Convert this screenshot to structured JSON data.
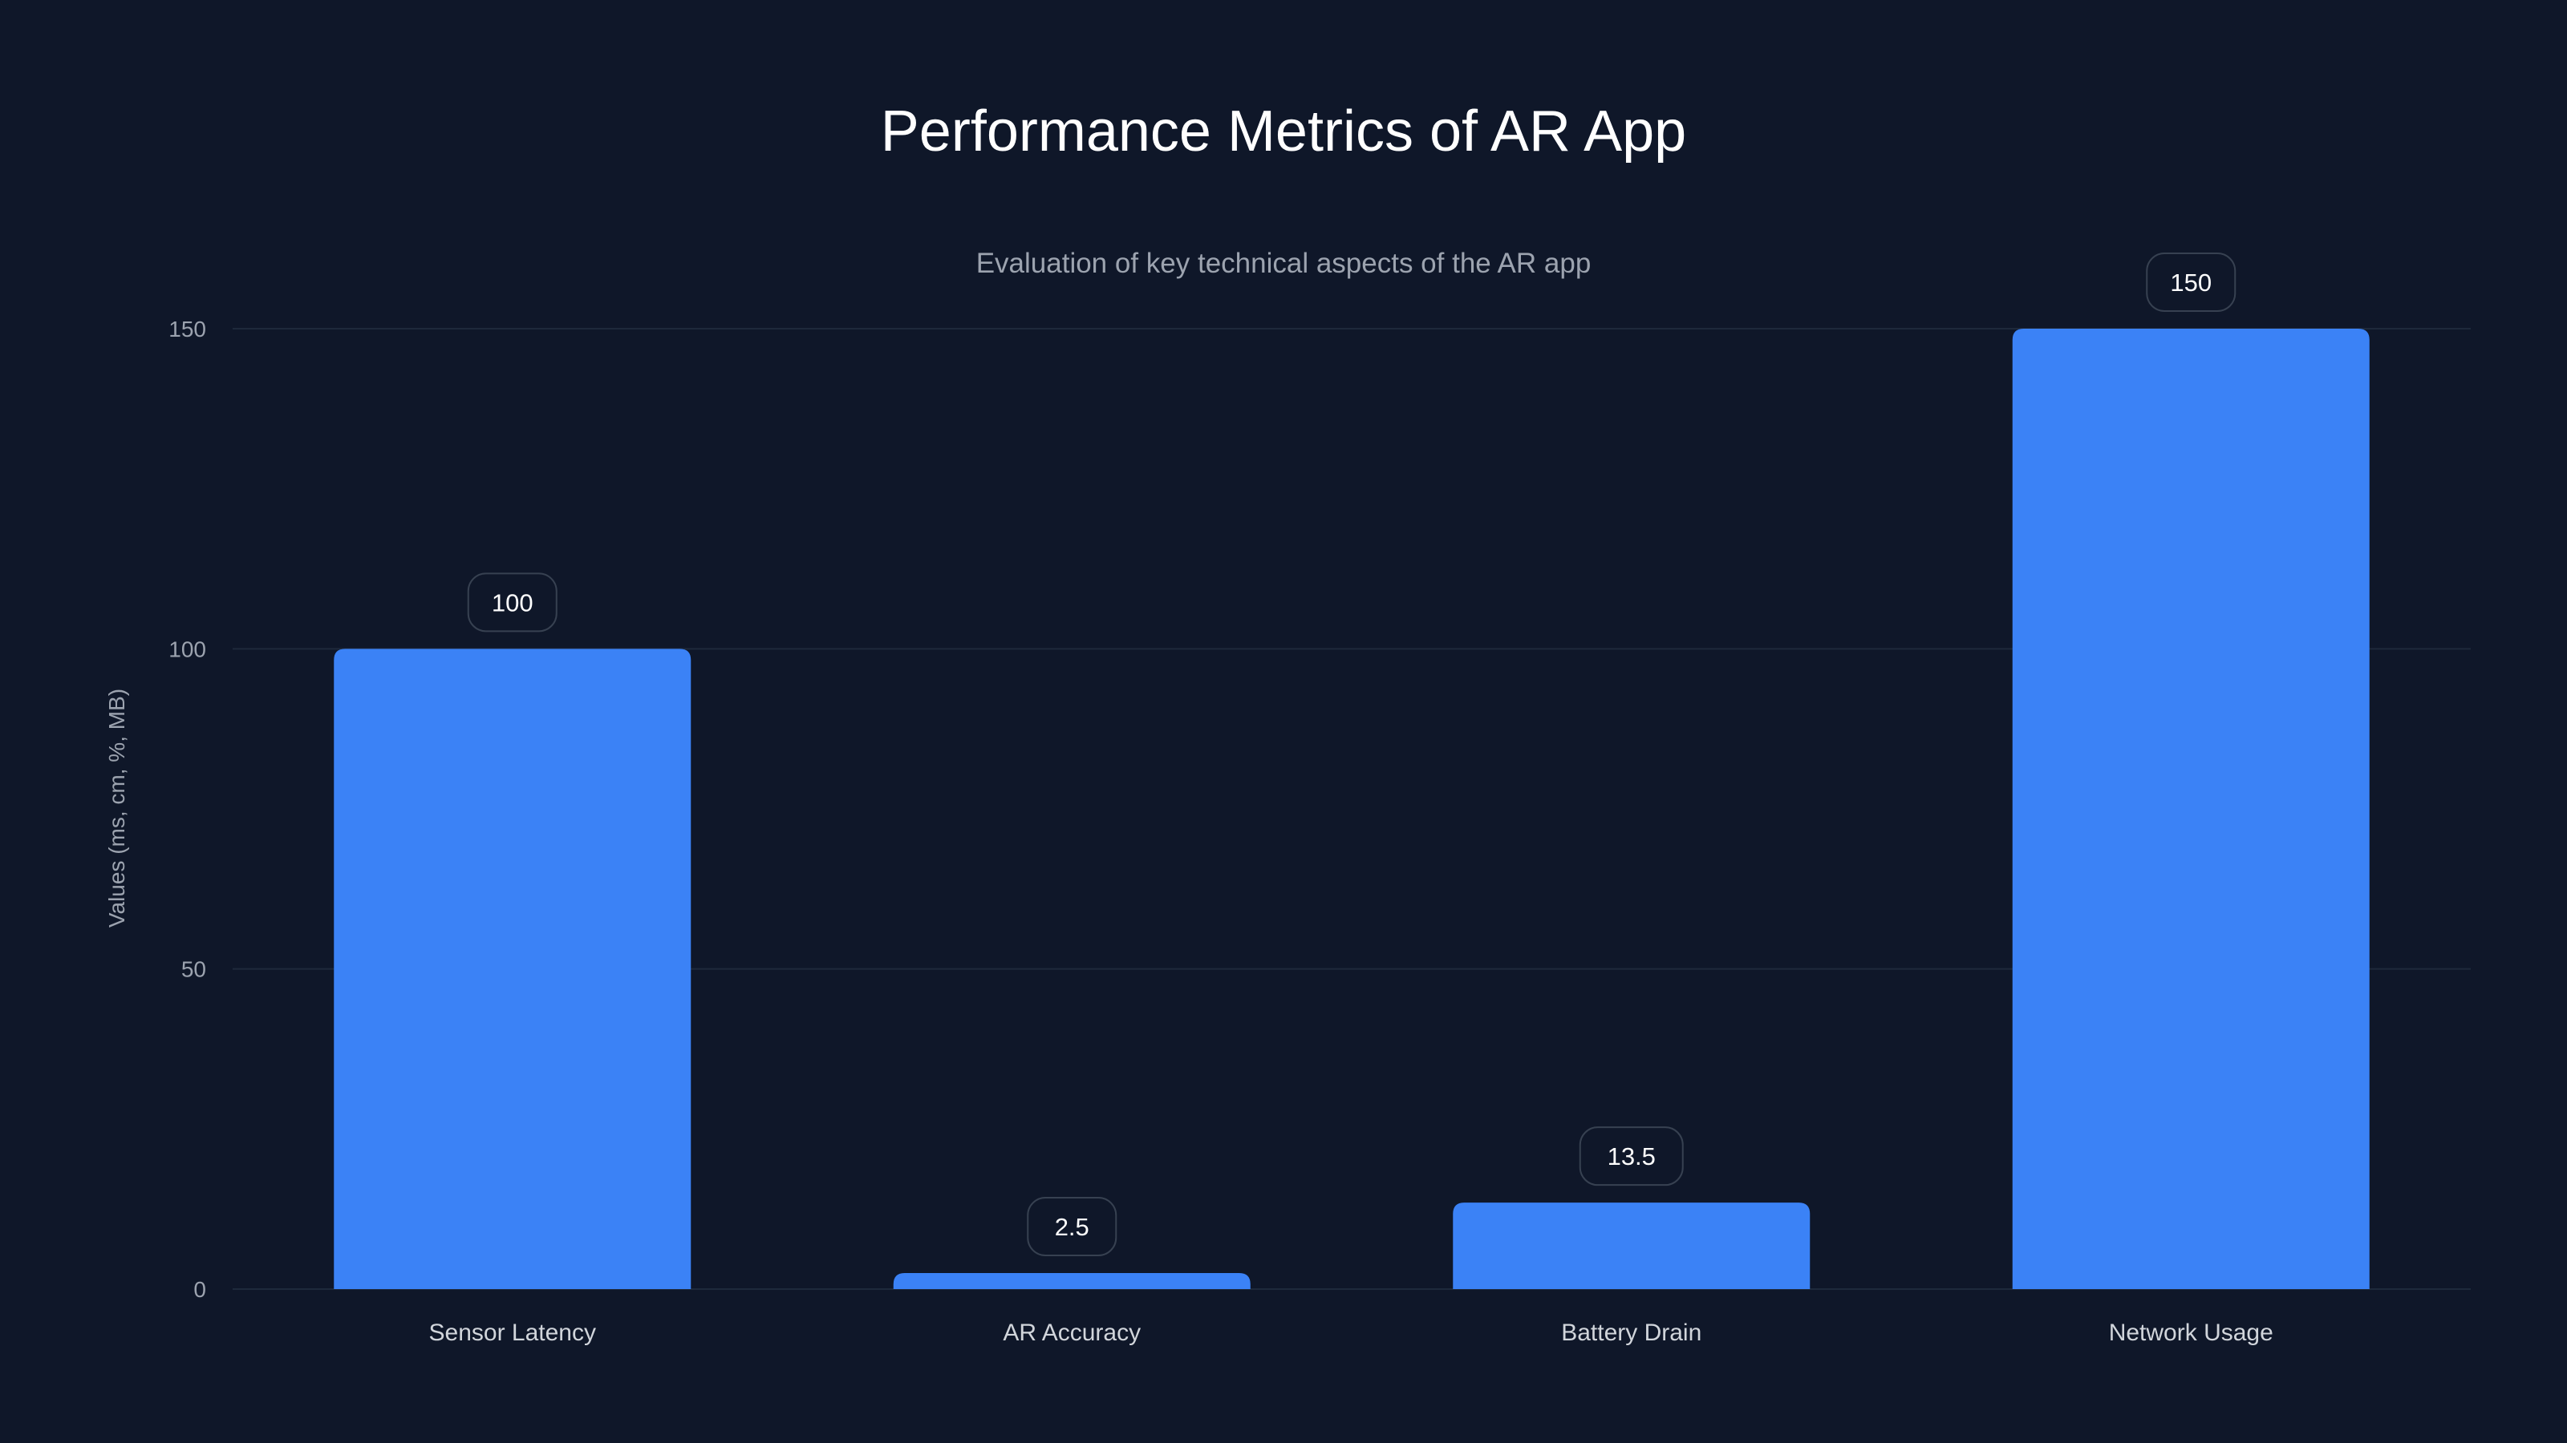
{
  "chart_data": {
    "type": "bar",
    "title": "Performance Metrics of AR App",
    "subtitle": "Evaluation of key technical aspects of the AR app",
    "xlabel": "",
    "ylabel": "Values (ms, cm, %, MB)",
    "categories": [
      "Sensor Latency",
      "AR Accuracy",
      "Battery Drain",
      "Network Usage"
    ],
    "values": [
      100,
      2.5,
      13.5,
      150
    ],
    "data_labels": [
      "100",
      "2.5",
      "13.5",
      "150"
    ],
    "ylim": [
      0,
      150
    ],
    "yticks": [
      0,
      50,
      100,
      150
    ],
    "grid": true,
    "legend": "none",
    "colors": {
      "bar": "#3b82f6",
      "background": "#0f1729",
      "grid": "#1e293b",
      "label_border": "#374151"
    }
  }
}
